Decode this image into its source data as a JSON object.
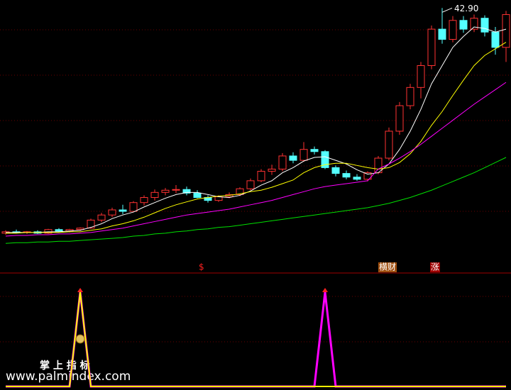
{
  "chart_data": [
    {
      "type": "candlestick",
      "up_color": "#ff3232",
      "down_color": "#54ffff",
      "ylim": [
        8,
        44
      ],
      "ohlc": [
        [
          12.0,
          12.4,
          11.8,
          12.2
        ],
        [
          12.2,
          12.5,
          12.0,
          12.1
        ],
        [
          12.1,
          12.3,
          11.9,
          12.2
        ],
        [
          12.2,
          12.4,
          11.9,
          12.0
        ],
        [
          12.0,
          12.6,
          11.9,
          12.5
        ],
        [
          12.5,
          12.7,
          12.2,
          12.3
        ],
        [
          12.3,
          12.6,
          12.1,
          12.5
        ],
        [
          12.5,
          12.8,
          12.3,
          12.7
        ],
        [
          12.7,
          14.0,
          12.6,
          13.8
        ],
        [
          13.8,
          14.8,
          13.5,
          14.5
        ],
        [
          14.5,
          15.5,
          14.2,
          15.2
        ],
        [
          15.2,
          15.9,
          14.6,
          15.0
        ],
        [
          15.0,
          16.4,
          14.9,
          16.2
        ],
        [
          16.2,
          17.2,
          15.8,
          16.9
        ],
        [
          16.9,
          18.0,
          16.5,
          17.6
        ],
        [
          17.6,
          18.2,
          17.2,
          17.9
        ],
        [
          17.9,
          18.6,
          17.5,
          18.0
        ],
        [
          18.0,
          18.4,
          17.2,
          17.5
        ],
        [
          17.5,
          17.9,
          16.8,
          16.9
        ],
        [
          16.9,
          17.2,
          16.2,
          16.5
        ],
        [
          16.5,
          17.2,
          16.3,
          17.0
        ],
        [
          17.0,
          17.6,
          16.8,
          17.3
        ],
        [
          17.3,
          18.3,
          17.1,
          18.1
        ],
        [
          18.1,
          19.5,
          17.9,
          19.2
        ],
        [
          19.2,
          20.8,
          19.0,
          20.5
        ],
        [
          20.5,
          21.4,
          20.0,
          20.8
        ],
        [
          20.8,
          23.0,
          20.5,
          22.6
        ],
        [
          22.6,
          23.1,
          21.6,
          22.0
        ],
        [
          22.0,
          24.5,
          21.8,
          23.5
        ],
        [
          23.5,
          23.9,
          22.8,
          23.2
        ],
        [
          23.2,
          23.4,
          20.8,
          21.0
        ],
        [
          21.0,
          21.3,
          19.8,
          20.2
        ],
        [
          20.2,
          20.6,
          19.4,
          19.7
        ],
        [
          19.7,
          20.1,
          19.2,
          19.4
        ],
        [
          19.4,
          20.5,
          19.1,
          20.3
        ],
        [
          20.3,
          22.6,
          20.1,
          22.3
        ],
        [
          22.3,
          26.5,
          22.0,
          26.0
        ],
        [
          26.0,
          30.0,
          25.5,
          29.5
        ],
        [
          29.5,
          32.5,
          29.0,
          32.0
        ],
        [
          32.0,
          35.5,
          30.5,
          35.0
        ],
        [
          35.0,
          40.5,
          34.5,
          40.0
        ],
        [
          40.0,
          42.9,
          38.0,
          38.6
        ],
        [
          38.6,
          41.8,
          38.2,
          41.2
        ],
        [
          41.2,
          41.8,
          39.5,
          40.0
        ],
        [
          40.0,
          42.0,
          39.6,
          41.5
        ],
        [
          41.5,
          41.9,
          39.0,
          39.6
        ],
        [
          39.6,
          40.3,
          36.5,
          37.5
        ],
        [
          37.5,
          42.5,
          35.5,
          42.0
        ]
      ],
      "series": [
        {
          "color": "#ffffff",
          "values": [
            12.1,
            12.1,
            12.1,
            12.1,
            12.2,
            12.2,
            12.3,
            12.4,
            12.8,
            13.3,
            14.0,
            14.5,
            14.9,
            15.6,
            16.2,
            16.8,
            17.3,
            17.6,
            17.6,
            17.3,
            17.0,
            16.9,
            17.2,
            17.8,
            18.6,
            19.2,
            20.3,
            21.0,
            21.9,
            22.4,
            22.5,
            22.0,
            21.5,
            20.7,
            20.1,
            20.3,
            21.5,
            23.5,
            26.0,
            29.0,
            32.5,
            35.0,
            37.5,
            39.0,
            40.3,
            40.1,
            39.6,
            40.0
          ]
        },
        {
          "color": "#ffff00",
          "values": [
            12.0,
            12.0,
            12.1,
            12.1,
            12.1,
            12.1,
            12.2,
            12.2,
            12.4,
            12.6,
            13.0,
            13.3,
            13.7,
            14.2,
            14.8,
            15.4,
            15.9,
            16.3,
            16.7,
            16.9,
            17.1,
            17.2,
            17.4,
            17.7,
            17.9,
            18.3,
            18.8,
            19.3,
            20.3,
            21.0,
            21.4,
            21.6,
            21.6,
            21.3,
            21.0,
            20.8,
            21.0,
            21.7,
            22.9,
            24.6,
            26.8,
            28.7,
            30.9,
            33.0,
            35.0,
            36.4,
            37.3,
            38.2
          ]
        },
        {
          "color": "#ff00ff",
          "values": [
            11.6,
            11.7,
            11.7,
            11.8,
            11.8,
            11.9,
            11.9,
            12.0,
            12.1,
            12.3,
            12.5,
            12.7,
            13.0,
            13.3,
            13.6,
            13.9,
            14.2,
            14.5,
            14.7,
            14.9,
            15.1,
            15.3,
            15.6,
            15.9,
            16.2,
            16.5,
            16.9,
            17.3,
            17.7,
            18.1,
            18.4,
            18.6,
            18.8,
            19.0,
            19.2,
            20.8,
            21.5,
            22.3,
            23.2,
            24.2,
            25.3,
            26.4,
            27.5,
            28.6,
            29.7,
            30.7,
            31.7,
            32.7
          ]
        },
        {
          "color": "#00e000",
          "values": [
            10.6,
            10.7,
            10.7,
            10.8,
            10.8,
            10.9,
            10.9,
            11.0,
            11.1,
            11.2,
            11.3,
            11.4,
            11.6,
            11.7,
            11.9,
            12.0,
            12.2,
            12.3,
            12.5,
            12.6,
            12.8,
            12.9,
            13.1,
            13.3,
            13.5,
            13.7,
            13.9,
            14.1,
            14.3,
            14.5,
            14.7,
            14.9,
            15.1,
            15.3,
            15.5,
            15.8,
            16.1,
            16.5,
            16.9,
            17.4,
            17.9,
            18.5,
            19.1,
            19.7,
            20.3,
            21.0,
            21.7,
            22.4
          ]
        }
      ],
      "high_label": {
        "value": 42.9,
        "label": "42.90"
      },
      "annotations": [
        "$",
        "横财",
        "涨"
      ]
    },
    {
      "type": "line",
      "ylim": [
        0,
        1
      ],
      "series": [
        {
          "color": "#ff00ff",
          "values": [
            0,
            0,
            0,
            0,
            0,
            0,
            0,
            1,
            0,
            0,
            0,
            0,
            0,
            0,
            0,
            0,
            0,
            0,
            0,
            0,
            0,
            0,
            0,
            0,
            0,
            0,
            0,
            0,
            0,
            0,
            1,
            0,
            0,
            0,
            0,
            0,
            0,
            0,
            0,
            0,
            0,
            0,
            0,
            0,
            0,
            0,
            0,
            0
          ]
        },
        {
          "color": "#ffff00",
          "values": [
            0,
            0,
            0,
            0,
            0,
            0,
            0,
            1,
            0,
            0,
            0,
            0,
            0,
            0,
            0,
            0,
            0,
            0,
            0,
            0,
            0,
            0,
            0,
            0,
            0,
            0,
            0,
            0,
            0,
            0,
            0,
            0,
            0,
            0,
            0,
            0,
            0,
            0,
            0,
            0,
            0,
            0,
            0,
            0,
            0,
            0,
            0,
            0
          ]
        }
      ]
    }
  ],
  "watermark": {
    "title": "掌 上 指 标",
    "url": "www.palmindex.com"
  }
}
